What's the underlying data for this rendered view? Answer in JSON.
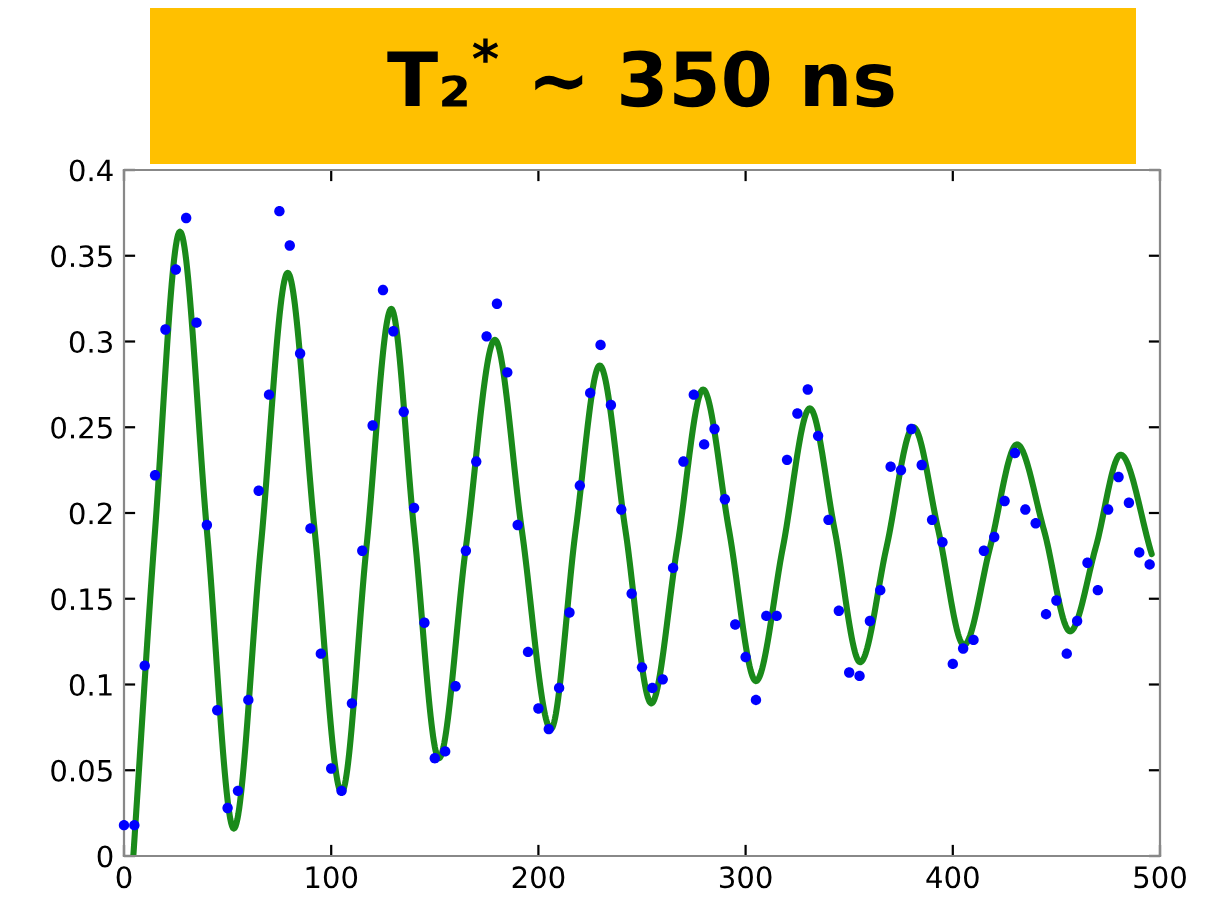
{
  "chart_data": {
    "type": "scatter",
    "title": "T₂$^{*}$ ~ 350 ns",
    "xlim": [
      0,
      500
    ],
    "ylim": [
      0,
      0.4
    ],
    "xticks": [
      0,
      100,
      200,
      300,
      400,
      500
    ],
    "yticks": [
      0,
      0.05,
      0.1,
      0.15,
      0.2,
      0.25,
      0.3,
      0.35,
      0.4
    ],
    "grid": false,
    "series": [
      {
        "color": "#0000ff",
        "marker": "circle",
        "x": [
          0,
          5,
          10,
          15,
          20,
          25,
          30,
          35,
          40,
          45,
          50,
          55,
          60,
          65,
          70,
          75,
          80,
          85,
          90,
          95,
          100,
          105,
          110,
          115,
          120,
          125,
          130,
          135,
          140,
          145,
          150,
          155,
          160,
          165,
          170,
          175,
          180,
          185,
          190,
          195,
          200,
          205,
          210,
          215,
          220,
          225,
          230,
          235,
          240,
          245,
          250,
          255,
          260,
          265,
          270,
          275,
          280,
          285,
          290,
          295,
          300,
          305,
          310,
          315,
          320,
          325,
          330,
          335,
          340,
          345,
          350,
          355,
          360,
          365,
          370,
          375,
          380,
          385,
          390,
          395,
          400,
          405,
          410,
          415,
          420,
          425,
          430,
          435,
          440,
          445,
          450,
          455,
          460,
          465,
          470,
          475,
          480,
          485,
          490,
          495
        ],
        "values": [
          0.018,
          0.018,
          0.111,
          0.222,
          0.307,
          0.342,
          0.372,
          0.311,
          0.193,
          0.085,
          0.028,
          0.038,
          0.091,
          0.213,
          0.269,
          0.376,
          0.356,
          0.293,
          0.191,
          0.118,
          0.051,
          0.038,
          0.089,
          0.178,
          0.251,
          0.33,
          0.306,
          0.259,
          0.203,
          0.136,
          0.057,
          0.061,
          0.099,
          0.178,
          0.23,
          0.303,
          0.322,
          0.282,
          0.193,
          0.119,
          0.086,
          0.074,
          0.098,
          0.142,
          0.216,
          0.27,
          0.298,
          0.263,
          0.202,
          0.153,
          0.11,
          0.098,
          0.103,
          0.168,
          0.23,
          0.269,
          0.24,
          0.249,
          0.208,
          0.135,
          0.116,
          0.091,
          0.14,
          0.14,
          0.231,
          0.258,
          0.272,
          0.245,
          0.196,
          0.143,
          0.107,
          0.105,
          0.137,
          0.155,
          0.227,
          0.225,
          0.249,
          0.228,
          0.196,
          0.183,
          0.112,
          0.121,
          0.126,
          0.178,
          0.186,
          0.207,
          0.235,
          0.202,
          0.194,
          0.141,
          0.149,
          0.118,
          0.137,
          0.171,
          0.155,
          0.202,
          0.221,
          0.206,
          0.177,
          0.17
        ]
      },
      {
        "type": "line",
        "color": "#1a8a1a",
        "marker": "none",
        "line_style": "solid",
        "x": [
          4.5,
          15,
          27,
          40,
          53,
          66,
          79,
          92,
          105,
          117,
          129,
          140,
          152,
          165,
          179,
          192,
          206,
          218,
          229.6,
          242,
          254.5,
          267,
          279.5,
          292,
          305,
          318,
          331,
          343,
          355.3,
          368,
          381,
          393,
          405.4,
          418,
          431,
          444,
          456.6,
          469,
          481,
          496
        ],
        "values": [
          0,
          0.19,
          0.364,
          0.19,
          0.016,
          0.18,
          0.34,
          0.19,
          0.037,
          0.18,
          0.319,
          0.19,
          0.057,
          0.18,
          0.301,
          0.19,
          0.074,
          0.19,
          0.286,
          0.19,
          0.089,
          0.18,
          0.272,
          0.19,
          0.102,
          0.18,
          0.261,
          0.19,
          0.113,
          0.18,
          0.25,
          0.19,
          0.123,
          0.18,
          0.24,
          0.19,
          0.131,
          0.18,
          0.234,
          0.176
        ]
      }
    ]
  }
}
